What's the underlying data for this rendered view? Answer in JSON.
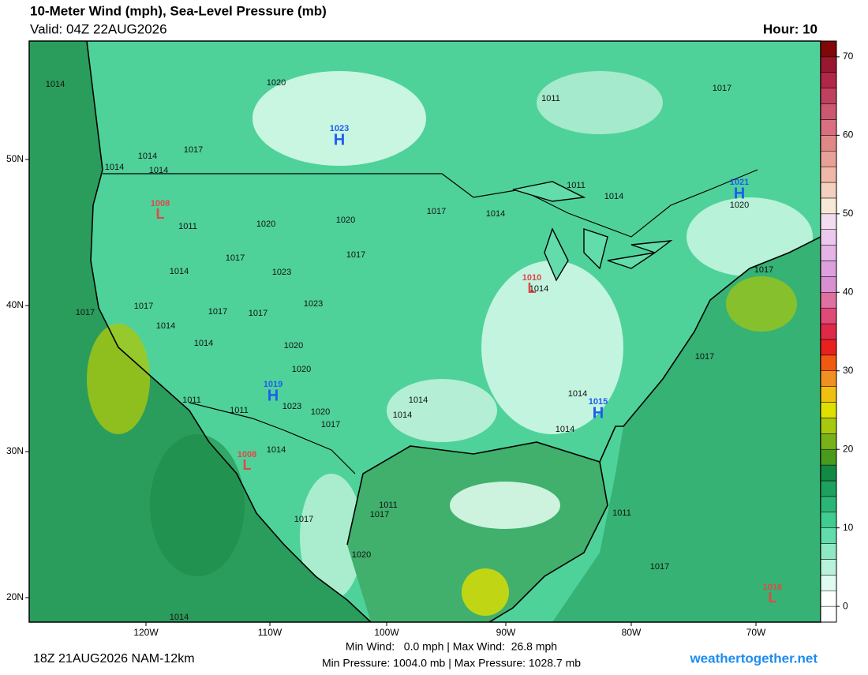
{
  "header": {
    "title": "10-Meter Wind (mph), Sea-Level Pressure (mb)",
    "valid": "Valid: 04Z 22AUG2026",
    "hour": "Hour: 10"
  },
  "map": {
    "lat_labels": [
      "50N",
      "40N",
      "30N",
      "20N"
    ],
    "lon_labels": [
      "120W",
      "110W",
      "100W",
      "90W",
      "80W",
      "70W"
    ],
    "isobar_labels": [
      "1014",
      "1020",
      "1011",
      "1017",
      "1014",
      "1017",
      "1014",
      "1014",
      "1011",
      "1020",
      "1020",
      "1017",
      "1014",
      "1011",
      "1014",
      "1020",
      "1017",
      "1017",
      "1014",
      "1023",
      "1023",
      "1017",
      "1017",
      "1014",
      "1017",
      "1017",
      "1014",
      "1020",
      "1020",
      "1014",
      "1017",
      "1017",
      "1014",
      "1011",
      "1011",
      "1023",
      "1020",
      "1014",
      "1014",
      "1017",
      "1014",
      "1014",
      "1017",
      "1017",
      "1011",
      "1020",
      "1011",
      "1017",
      "1014"
    ],
    "high_symbol": "H",
    "low_symbol": "L",
    "highs": [
      "1023",
      "1021",
      "1019",
      "1015"
    ],
    "lows": [
      "1008",
      "1010",
      "1008",
      "1016"
    ]
  },
  "colorbar": {
    "lim": [
      -2,
      72
    ],
    "ticks": [
      0,
      10,
      20,
      30,
      40,
      50,
      60,
      70
    ],
    "colors": [
      "#ffffff",
      "#ffffff",
      "#dffaee",
      "#b8f2da",
      "#8ee8c4",
      "#62dcaa",
      "#40cc90",
      "#2cb676",
      "#1ea05e",
      "#128a46",
      "#4a9a1e",
      "#78b218",
      "#a8c810",
      "#e0e000",
      "#f0c010",
      "#f09020",
      "#f05a10",
      "#e82020",
      "#e02848",
      "#e04a78",
      "#e070a0",
      "#d890d0",
      "#dca0dc",
      "#e4b4e4",
      "#ecc8ec",
      "#f4dcf0",
      "#f8e8d8",
      "#f4d0c0",
      "#f0b8a8",
      "#e8a098",
      "#e08888",
      "#d87080",
      "#cc5870",
      "#c04060",
      "#b02848",
      "#981830",
      "#800808"
    ]
  },
  "footer": {
    "run": "18Z 21AUG2026 NAM-12km",
    "wind": "Min Wind:   0.0 mph | Max Wind:  26.8 mph",
    "pressure": "Min Pressure: 1004.0 mb | Max Pressure: 1028.7 mb",
    "site": "weathertogether.net"
  }
}
